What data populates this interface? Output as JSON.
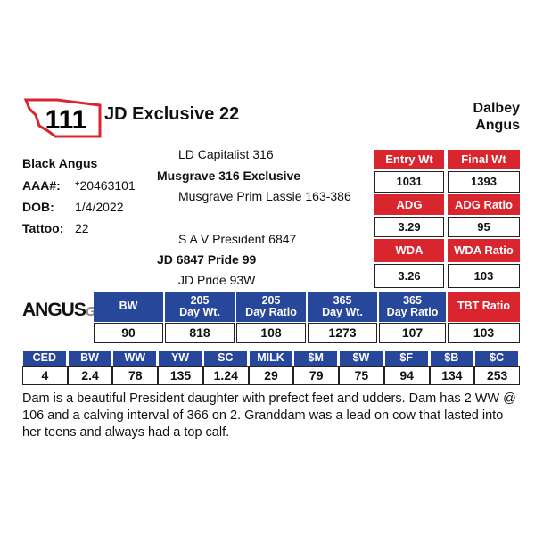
{
  "lot": "111",
  "name": "JD Exclusive 22",
  "consignor": [
    "Dalbey",
    "Angus"
  ],
  "info": {
    "breed": "Black Angus",
    "rows": [
      [
        "AAA#:",
        "*20463101"
      ],
      [
        "DOB:",
        "1/4/2022"
      ],
      [
        "Tattoo:",
        "22"
      ]
    ]
  },
  "pedigree": {
    "sire_sire": "LD Capitalist 316",
    "sire": "Musgrave 316 Exclusive",
    "sire_dam": "Musgrave Prim Lassie 163-386",
    "dam_sire": "S A V President 6847",
    "dam": "JD 6847 Pride 99",
    "dam_dam": "JD Pride 93W"
  },
  "performance": {
    "rows": [
      [
        "Entry Wt",
        "Final Wt"
      ],
      [
        "1031",
        "1393"
      ],
      [
        "ADG",
        "ADG Ratio"
      ],
      [
        "3.29",
        "95"
      ],
      [
        "WDA",
        "WDA Ratio"
      ],
      [
        "3.26",
        "103"
      ]
    ]
  },
  "logo": [
    "ANGUS",
    "GS"
  ],
  "ratios": {
    "headers": [
      [
        "BW"
      ],
      [
        "205",
        "Day Wt."
      ],
      [
        "205",
        "Day Ratio"
      ],
      [
        "365",
        "Day Wt."
      ],
      [
        "365",
        "Day Ratio"
      ],
      [
        "TBT Ratio"
      ]
    ],
    "values": [
      "90",
      "818",
      "108",
      "1273",
      "107",
      "103"
    ]
  },
  "epd": {
    "headers": [
      "CED",
      "BW",
      "WW",
      "YW",
      "SC",
      "MILK",
      "$M",
      "$W",
      "$F",
      "$B",
      "$C"
    ],
    "values": [
      "4",
      "2.4",
      "78",
      "135",
      "1.24",
      "29",
      "79",
      "75",
      "94",
      "134",
      "253"
    ]
  },
  "notes": "Dam is a beautiful President daughter with prefect feet and udders.  Dam has 2 WW @ 106 and a calving interval of 366 on 2. Granddam was a lead on cow that lasted into her teens and always had a top calf."
}
